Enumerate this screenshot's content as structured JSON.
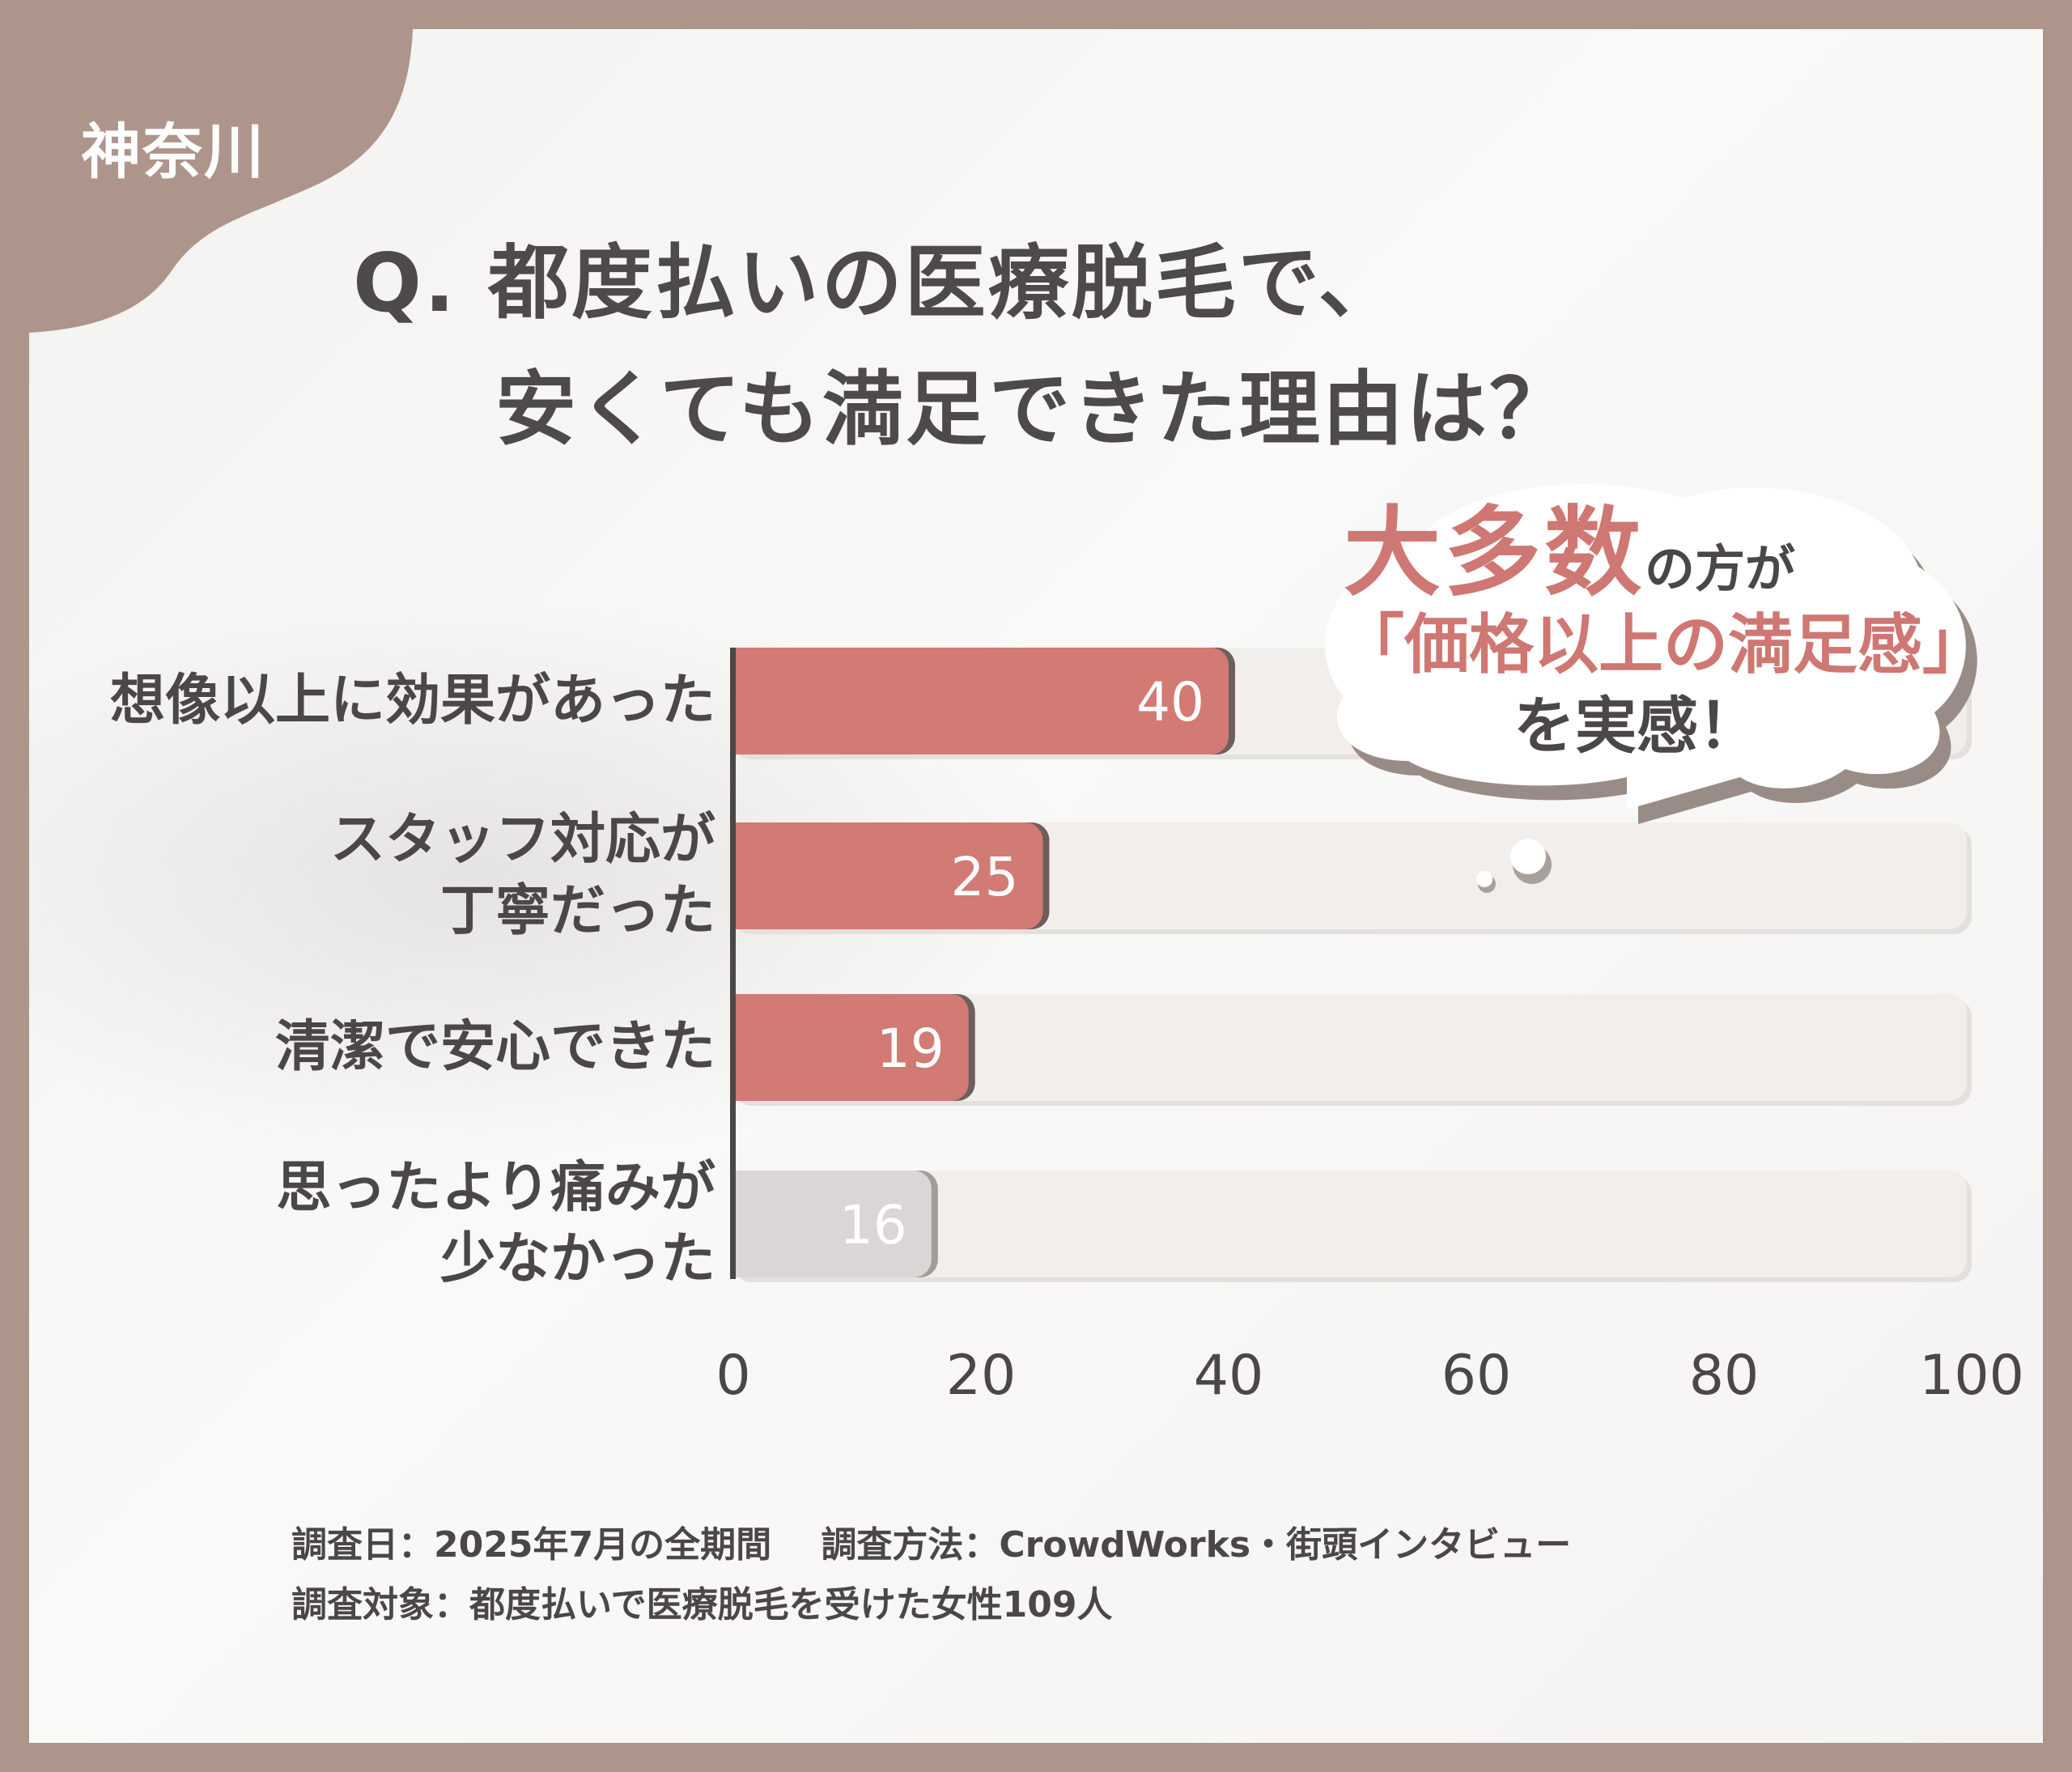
{
  "region": "神奈川",
  "title": {
    "line1": "Q. 都度払いの医療脱毛で、",
    "line2": "安くても満足できた理由は？"
  },
  "callout": {
    "emphasis": "大多数",
    "line1_rest": "の方が",
    "line2": "「価格以上の満足感」",
    "line3": "を実感！"
  },
  "colors": {
    "frame": "#ae958c",
    "bar_highlight": "#d27a74",
    "bar_muted": "#d9d6d5",
    "bar_track": "#f1eeec",
    "text": "#4a4746",
    "accent": "#cf7772"
  },
  "chart_data": {
    "type": "bar",
    "orientation": "horizontal",
    "categories": [
      [
        "想像以上に効果があった"
      ],
      [
        "スタッフ対応が",
        "丁寧だった"
      ],
      [
        "清潔で安心できた"
      ],
      [
        "思ったより痛みが",
        "少なかった"
      ]
    ],
    "values": [
      40,
      25,
      19,
      16
    ],
    "highlighted": [
      true,
      true,
      true,
      false
    ],
    "xlim": [
      0,
      100
    ],
    "xticks": [
      "0",
      "20",
      "40",
      "60",
      "80",
      "100"
    ],
    "grid": false,
    "legend": "none"
  },
  "footer": {
    "date": "調査日：2025年7月の全期間",
    "method": "調査方法：CrowdWorks・街頭インタビュー",
    "target": "調査対象：都度払いで医療脱毛を受けた女性109人"
  }
}
